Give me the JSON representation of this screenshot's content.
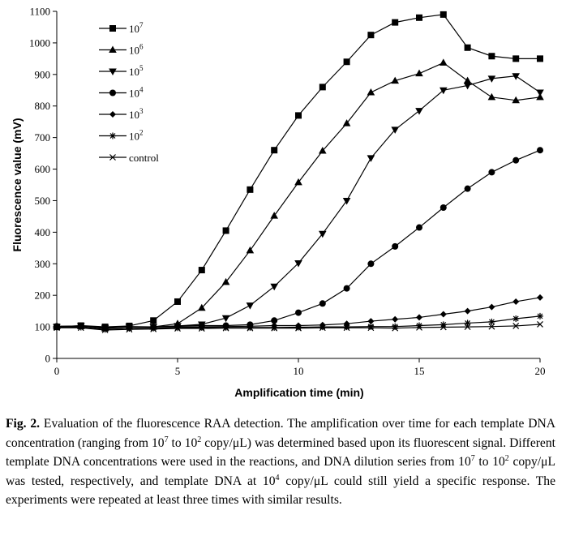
{
  "chart_data": {
    "type": "line",
    "xlabel": "Amplification time (min)",
    "ylabel": "Fluorescence value (mV)",
    "xlim": [
      0,
      20
    ],
    "ylim": [
      0,
      1100
    ],
    "x_ticks": [
      0,
      5,
      10,
      15,
      20
    ],
    "y_ticks": [
      0,
      100,
      200,
      300,
      400,
      500,
      600,
      700,
      800,
      900,
      1000,
      1100
    ],
    "legend_position": "top-left",
    "grid": false,
    "x": [
      0,
      1,
      2,
      3,
      4,
      5,
      6,
      7,
      8,
      9,
      10,
      11,
      12,
      13,
      14,
      15,
      16,
      17,
      18,
      19,
      20
    ],
    "series": [
      {
        "name": "10^7",
        "label_base": "10",
        "label_exp": "7",
        "marker": "square",
        "values": [
          100,
          104,
          100,
          103,
          120,
          180,
          280,
          405,
          535,
          660,
          770,
          860,
          940,
          1025,
          1065,
          1080,
          1090,
          985,
          958,
          950,
          950
        ]
      },
      {
        "name": "10^6",
        "label_base": "10",
        "label_exp": "6",
        "marker": "triangle-up",
        "values": [
          102,
          102,
          95,
          100,
          100,
          110,
          160,
          242,
          342,
          452,
          558,
          658,
          745,
          843,
          880,
          903,
          937,
          880,
          828,
          818,
          828
        ]
      },
      {
        "name": "10^5",
        "label_base": "10",
        "label_exp": "5",
        "marker": "triangle-down",
        "values": [
          100,
          103,
          97,
          100,
          100,
          103,
          108,
          128,
          168,
          228,
          302,
          395,
          500,
          635,
          725,
          785,
          850,
          865,
          887,
          895,
          843
        ]
      },
      {
        "name": "10^4",
        "label_base": "10",
        "label_exp": "4",
        "marker": "circle",
        "values": [
          102,
          103,
          98,
          101,
          100,
          103,
          104,
          104,
          107,
          120,
          145,
          174,
          222,
          300,
          355,
          415,
          478,
          538,
          590,
          628,
          660
        ]
      },
      {
        "name": "10^3",
        "label_base": "10",
        "label_exp": "3",
        "marker": "diamond",
        "values": [
          101,
          102,
          97,
          100,
          100,
          100,
          100,
          101,
          102,
          104,
          104,
          106,
          110,
          118,
          124,
          130,
          140,
          150,
          163,
          180,
          193
        ]
      },
      {
        "name": "10^2",
        "label_base": "10",
        "label_exp": "2",
        "marker": "asterisk",
        "values": [
          98,
          99,
          92,
          95,
          96,
          97,
          98,
          98,
          98,
          98,
          99,
          100,
          100,
          101,
          101,
          104,
          107,
          112,
          116,
          126,
          134
        ]
      },
      {
        "name": "control",
        "label_base": "control",
        "label_exp": "",
        "marker": "x",
        "values": [
          97,
          97,
          90,
          92,
          93,
          95,
          95,
          96,
          96,
          96,
          96,
          97,
          97,
          97,
          96,
          98,
          99,
          100,
          101,
          103,
          108
        ]
      }
    ]
  },
  "caption": {
    "label": "Fig. 2.",
    "t1": " Evaluation of the fluorescence RAA detection. The amplification over time for each template DNA concentration (ranging from 10",
    "s1": "7",
    "t2": " to 10",
    "s2": "2",
    "t3": " copy/μL) was determined based upon its fluorescent signal. Different template DNA concentrations were used in the reactions, and DNA dilution series from 10",
    "s3": "7",
    "t4": " to 10",
    "s4": "2",
    "t5": " copy/μL was tested, respectively, and template DNA at 10",
    "s5": "4",
    "t6": " copy/μL could still yield a specific response. The experiments were repeated at least three times with similar results."
  }
}
